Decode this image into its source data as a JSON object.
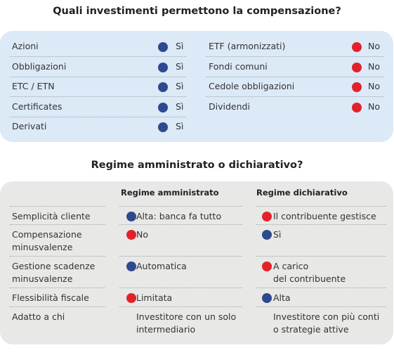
{
  "section1": {
    "title": "Quali investimenti permettono la compensazione?",
    "left": [
      {
        "label": "Azioni",
        "answer": "Sì",
        "dot": "#2e4a8f"
      },
      {
        "label": "Obbligazioni",
        "answer": "Sì",
        "dot": "#2e4a8f"
      },
      {
        "label": "ETC / ETN",
        "answer": "Sì",
        "dot": "#2e4a8f"
      },
      {
        "label": "Certificates",
        "answer": "Sì",
        "dot": "#2e4a8f"
      },
      {
        "label": "Derivati",
        "answer": "Sì",
        "dot": "#2e4a8f"
      }
    ],
    "right": [
      {
        "label": "ETF (armonizzati)",
        "answer": "No",
        "dot": "#e3212b"
      },
      {
        "label": "Fondi comuni",
        "answer": "No",
        "dot": "#e3212b"
      },
      {
        "label": "Cedole obbligazioni",
        "answer": "No",
        "dot": "#e3212b"
      },
      {
        "label": "Dividendi",
        "answer": "No",
        "dot": "#e3212b"
      }
    ]
  },
  "section2": {
    "title": "Regime amministrato o dichiarativo?",
    "headers": [
      "Regime amministrato",
      "Regime dichiarativo"
    ],
    "rows": [
      {
        "label": "Semplicità cliente",
        "cells": [
          {
            "text": "Alta: banca fa tutto",
            "dot": "#2e4a8f"
          },
          {
            "text": "Il contribuente gestisce",
            "dot": "#e3212b"
          }
        ]
      },
      {
        "label": "Compensazione\nminusvalenze",
        "cells": [
          {
            "text": "No",
            "dot": "#e3212b"
          },
          {
            "text": "Sì",
            "dot": "#2e4a8f"
          }
        ]
      },
      {
        "label": "Gestione scadenze\nminusvalenze",
        "cells": [
          {
            "text": "Automatica",
            "dot": "#2e4a8f"
          },
          {
            "text": "A carico\ndel contribuente",
            "dot": "#e3212b"
          }
        ]
      },
      {
        "label": "Flessibilità fiscale",
        "cells": [
          {
            "text": "Limitata",
            "dot": "#e3212b"
          },
          {
            "text": "Alta",
            "dot": "#2e4a8f"
          }
        ]
      },
      {
        "label": "Adatto a chi",
        "cells": [
          {
            "text": "Investitore con un solo\nintermediario"
          },
          {
            "text": "Investitore con più conti\no strategie attive"
          }
        ]
      }
    ]
  }
}
